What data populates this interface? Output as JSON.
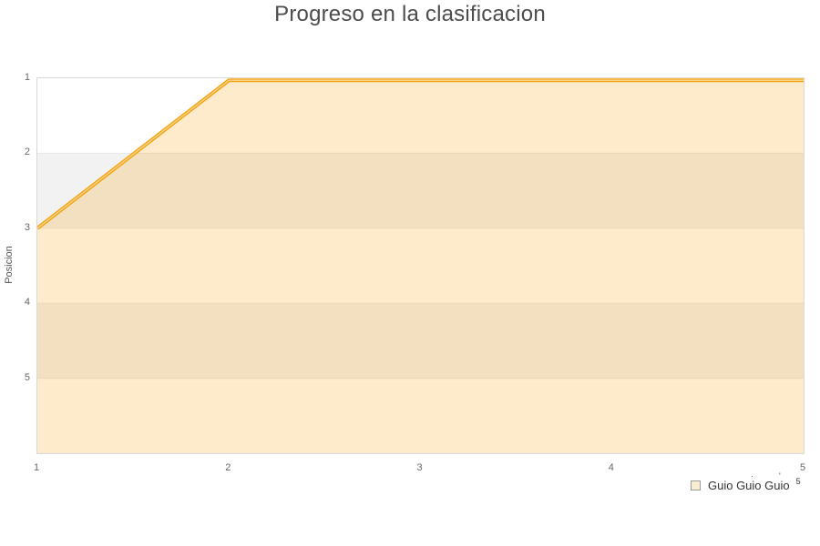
{
  "title": "Progreso en la clasificacion",
  "chart_data": {
    "type": "line",
    "title": "Progreso en la clasificacion",
    "x": [
      1,
      2,
      3,
      4,
      5
    ],
    "series": [
      {
        "name": "Guio Guio Guio",
        "values": [
          3,
          1,
          1,
          1,
          1
        ]
      }
    ],
    "xlabel": "",
    "ylabel": "Posicion",
    "xlim": [
      1,
      5
    ],
    "ylim": [
      1,
      6
    ],
    "y_axis_inverted": true,
    "x_ticks": [
      "1",
      "2",
      "3",
      "4",
      "5"
    ],
    "y_ticks": [
      "1",
      "2",
      "3",
      "4",
      "5"
    ],
    "grid": "horizontal",
    "alternating_bands": true,
    "area_filled": true,
    "legend_position": "bottom-right",
    "colors": {
      "line": "#f2a30d",
      "line_highlight": "#fbd189",
      "area_fill": "rgba(245,160,10,0.21)",
      "band_gray": "#f2f2f2",
      "band_white": "#ffffff",
      "gridline": "#e6e6e6",
      "plot_border": "#d9d9d9"
    }
  },
  "axes": {
    "y_label": "Posicion",
    "y_ticks": [
      "1",
      "2",
      "3",
      "4",
      "5"
    ],
    "x_ticks": [
      "1",
      "2",
      "3",
      "4",
      "5"
    ]
  },
  "legend": {
    "label": "Guio Guio Guio",
    "superscript": "5",
    "mark1": "·",
    "mark2": "ʹ"
  }
}
